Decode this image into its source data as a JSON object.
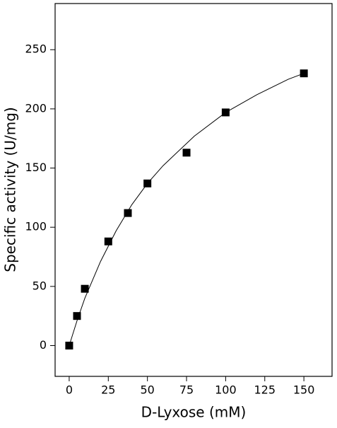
{
  "chart_data": {
    "type": "scatter",
    "xlabel": "D-Lyxose (mM)",
    "ylabel": "Specific activity (U/mg)",
    "xlim": [
      -9,
      168
    ],
    "ylim": [
      -26,
      289
    ],
    "xticks": [
      0,
      25,
      50,
      75,
      100,
      125,
      150
    ],
    "yticks": [
      0,
      50,
      100,
      150,
      200,
      250
    ],
    "series": [
      {
        "type": "scatter",
        "marker": "square",
        "color": "#000000",
        "x": [
          0,
          5,
          10,
          25,
          37.5,
          50,
          75,
          100,
          150
        ],
        "values": [
          0,
          25,
          48,
          88,
          112,
          137,
          163,
          197,
          230
        ]
      },
      {
        "type": "line",
        "color": "#000000",
        "x": [
          0,
          5,
          10,
          20,
          30,
          40,
          50,
          60,
          80,
          100,
          120,
          140,
          150
        ],
        "values": [
          0,
          21,
          40,
          71,
          97,
          119,
          137,
          152,
          177,
          197,
          212,
          225,
          230
        ]
      }
    ]
  }
}
